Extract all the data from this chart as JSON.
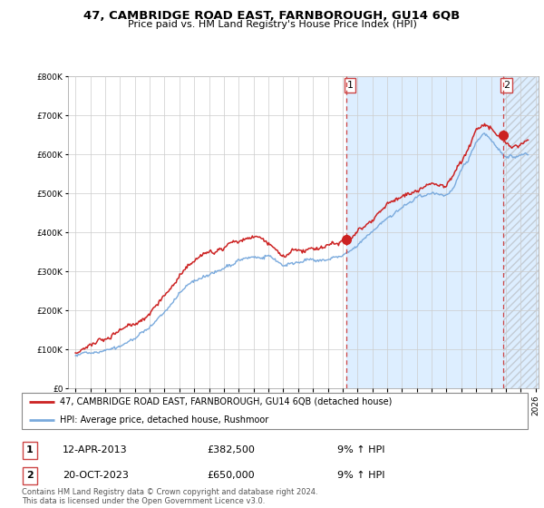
{
  "title": "47, CAMBRIDGE ROAD EAST, FARNBOROUGH, GU14 6QB",
  "subtitle": "Price paid vs. HM Land Registry's House Price Index (HPI)",
  "legend_line1": "47, CAMBRIDGE ROAD EAST, FARNBOROUGH, GU14 6QB (detached house)",
  "legend_line2": "HPI: Average price, detached house, Rushmoor",
  "footnote": "Contains HM Land Registry data © Crown copyright and database right 2024.\nThis data is licensed under the Open Government Licence v3.0.",
  "sale1_date": "12-APR-2013",
  "sale1_price": "£382,500",
  "sale1_hpi": "9% ↑ HPI",
  "sale2_date": "20-OCT-2023",
  "sale2_price": "£650,000",
  "sale2_hpi": "9% ↑ HPI",
  "hpi_color": "#7aaadd",
  "price_color": "#cc2222",
  "sale1_year": 2013.28,
  "sale1_value": 382500,
  "sale2_year": 2023.8,
  "sale2_value": 650000,
  "vline_color": "#cc4444",
  "shade_color": "#ddeeff",
  "hatch_color": "#cccccc",
  "ylim_max": 800000,
  "xlim_start": 1994.5,
  "xlim_end": 2026.2,
  "yticks": [
    0,
    100000,
    200000,
    300000,
    400000,
    500000,
    600000,
    700000,
    800000
  ],
  "hpi_knots_x": [
    1995,
    1996,
    1997,
    1998,
    1999,
    2000,
    2001,
    2002,
    2003,
    2004,
    2005,
    2006,
    2007,
    2008,
    2009,
    2010,
    2011,
    2012,
    2013,
    2014,
    2015,
    2016,
    2017,
    2018,
    2019,
    2020,
    2020.5,
    2021,
    2021.5,
    2022,
    2022.5,
    2023,
    2023.5,
    2024,
    2024.5,
    2025
  ],
  "hpi_knots_y": [
    83000,
    93000,
    106000,
    122000,
    142000,
    168000,
    210000,
    258000,
    290000,
    308000,
    322000,
    336000,
    348000,
    342000,
    318000,
    328000,
    333000,
    338000,
    348000,
    368000,
    398000,
    435000,
    465000,
    484000,
    494000,
    490000,
    510000,
    548000,
    578000,
    622000,
    650000,
    635000,
    610000,
    595000,
    590000,
    598000
  ],
  "price_knots_x": [
    1995,
    1996,
    1997,
    1998,
    1999,
    2000,
    2001,
    2002,
    2003,
    2004,
    2005,
    2006,
    2007,
    2008,
    2008.5,
    2009,
    2010,
    2011,
    2012,
    2013,
    2013.28,
    2014,
    2015,
    2016,
    2017,
    2018,
    2019,
    2020,
    2020.5,
    2021,
    2021.5,
    2022,
    2022.5,
    2023,
    2023.5,
    2023.8,
    2024,
    2024.5,
    2025
  ],
  "price_knots_y": [
    90000,
    102000,
    116000,
    135000,
    157000,
    187000,
    232000,
    278000,
    310000,
    330000,
    346000,
    362000,
    385000,
    372000,
    355000,
    333000,
    350000,
    358000,
    368000,
    382500,
    382500,
    405000,
    440000,
    482000,
    518000,
    538000,
    548000,
    543000,
    568000,
    600000,
    635000,
    678000,
    690000,
    672000,
    655000,
    650000,
    638000,
    628000,
    638000
  ]
}
